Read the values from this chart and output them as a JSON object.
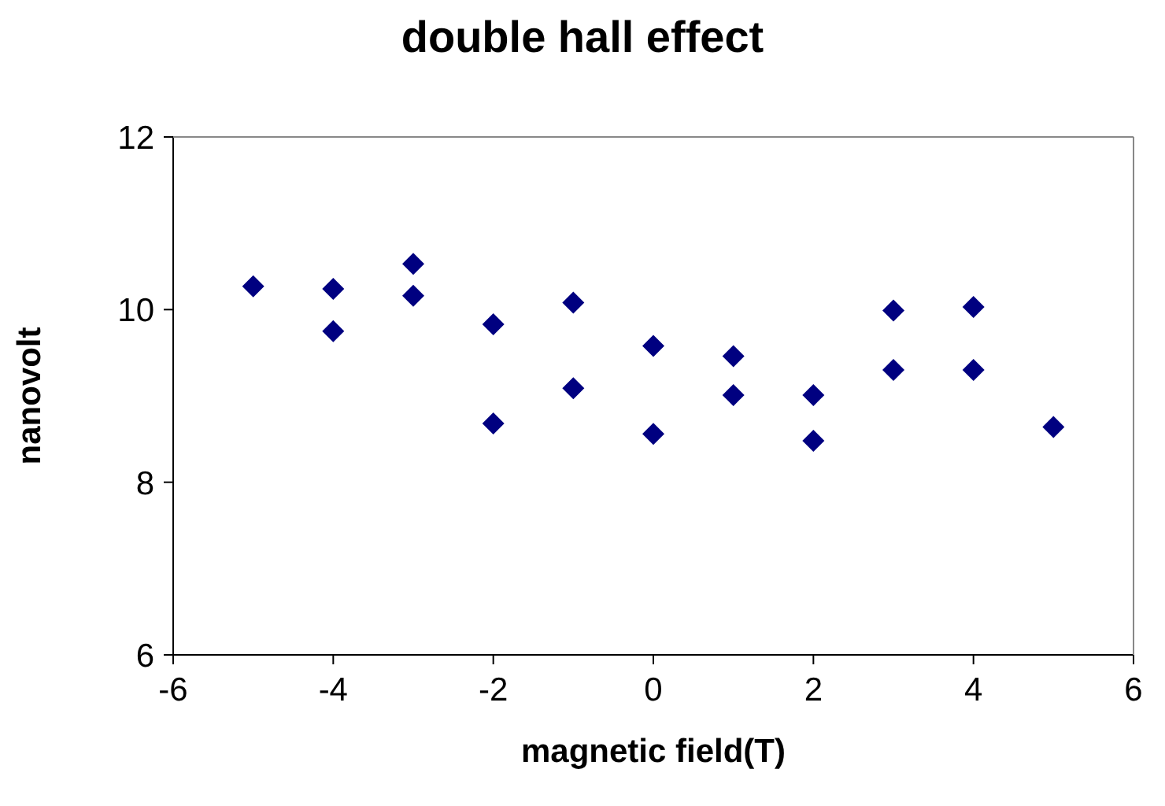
{
  "chart_data": {
    "type": "scatter",
    "title": "double hall effect",
    "xlabel": "magnetic field(T)",
    "ylabel": "nanovolt",
    "x": [
      -5,
      -4,
      -4,
      -3,
      -3,
      -2,
      -2,
      -1,
      -1,
      0,
      0,
      1,
      1,
      2,
      2,
      3,
      3,
      4,
      4,
      5
    ],
    "series": [
      {
        "color": "#000080",
        "values": [
          10.27,
          10.24,
          9.75,
          10.53,
          10.16,
          9.83,
          8.68,
          10.08,
          9.09,
          9.58,
          8.56,
          9.46,
          9.01,
          9.01,
          8.48,
          9.99,
          9.3,
          10.03,
          9.3,
          8.64
        ]
      }
    ],
    "xlim": [
      -6,
      6
    ],
    "xticks": [
      -6,
      -4,
      -2,
      0,
      2,
      4,
      6
    ],
    "ylim": [
      6,
      12
    ],
    "yticks": [
      6,
      8,
      10,
      12
    ],
    "grid": false,
    "legend": false,
    "marker": "diamond"
  }
}
